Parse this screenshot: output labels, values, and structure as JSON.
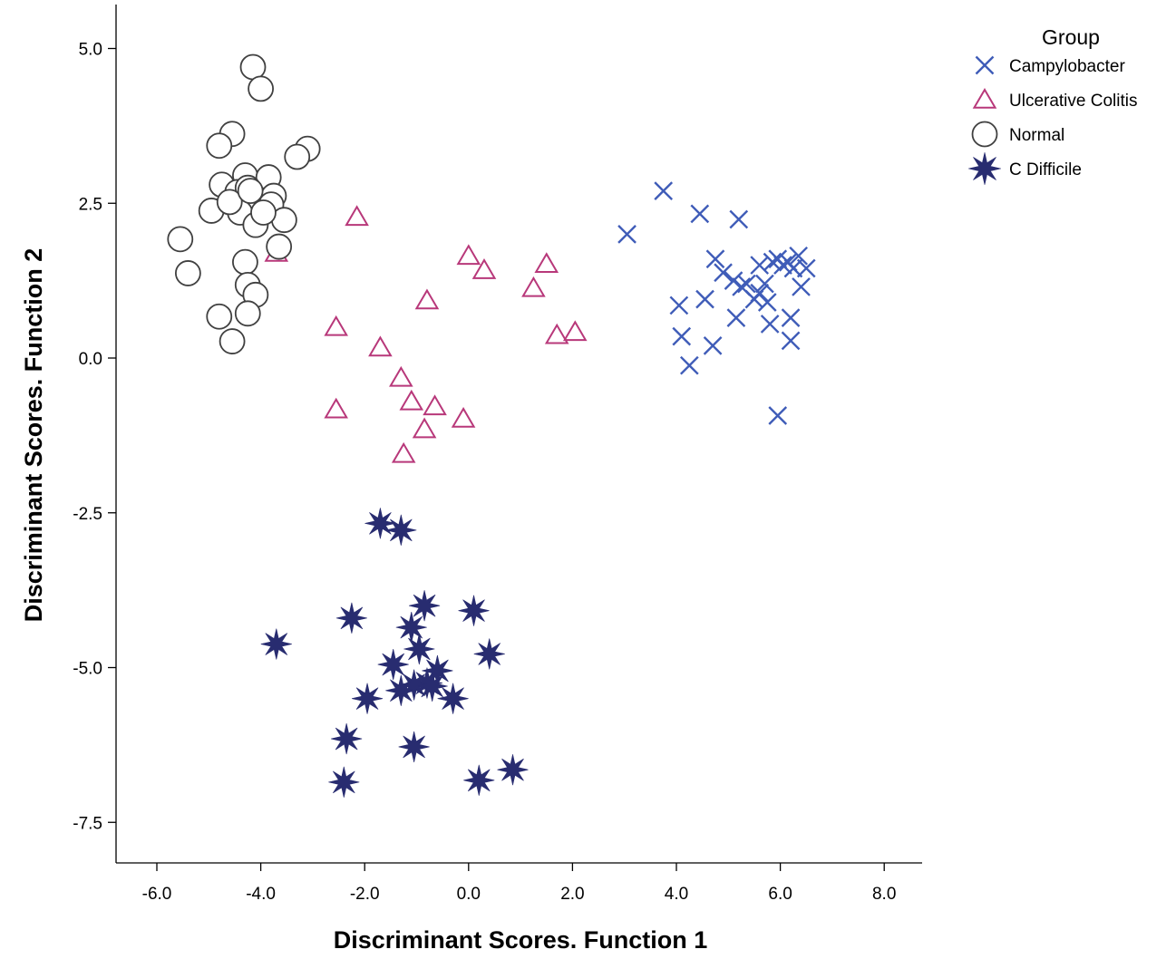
{
  "chart_data": {
    "type": "scatter",
    "xlabel": "Discriminant Scores.  Function 1",
    "ylabel": "Discriminant Scores.  Function 2",
    "xlim": [
      -6.8,
      8.8
    ],
    "ylim": [
      -8.2,
      5.7
    ],
    "xticks": [
      {
        "value": -6,
        "label": "-6.0"
      },
      {
        "value": -4,
        "label": "-4.0"
      },
      {
        "value": -2,
        "label": "-2.0"
      },
      {
        "value": 0,
        "label": "0.0"
      },
      {
        "value": 2,
        "label": "2.0"
      },
      {
        "value": 4,
        "label": "4.0"
      },
      {
        "value": 6,
        "label": "6.0"
      },
      {
        "value": 8,
        "label": "8.0"
      }
    ],
    "yticks": [
      {
        "value": 5,
        "label": "5.0"
      },
      {
        "value": 2.5,
        "label": "2.5"
      },
      {
        "value": 0,
        "label": "0.0"
      },
      {
        "value": -2.5,
        "label": "-2.5"
      },
      {
        "value": -5,
        "label": "-5.0"
      },
      {
        "value": -7.5,
        "label": "-7.5"
      }
    ],
    "legend": {
      "title": "Group",
      "position": "top-right",
      "entries": [
        "Campylobacter",
        "Ulcerative Colitis",
        "Normal",
        "C Difficile"
      ]
    },
    "grid": false,
    "series": [
      {
        "name": "Campylobacter",
        "marker": "x",
        "color": "#3f5cb8",
        "points": [
          [
            3.05,
            2.0
          ],
          [
            3.75,
            2.7
          ],
          [
            4.45,
            2.33
          ],
          [
            5.2,
            2.24
          ],
          [
            4.05,
            0.85
          ],
          [
            4.1,
            0.35
          ],
          [
            4.25,
            -0.12
          ],
          [
            4.55,
            0.95
          ],
          [
            4.7,
            0.2
          ],
          [
            4.75,
            1.6
          ],
          [
            4.9,
            1.38
          ],
          [
            5.1,
            1.25
          ],
          [
            5.15,
            0.65
          ],
          [
            5.25,
            1.15
          ],
          [
            5.35,
            1.2
          ],
          [
            5.5,
            0.95
          ],
          [
            5.6,
            1.5
          ],
          [
            5.7,
            1.2
          ],
          [
            5.75,
            0.9
          ],
          [
            5.8,
            0.55
          ],
          [
            5.85,
            1.55
          ],
          [
            5.95,
            1.6
          ],
          [
            6.05,
            1.5
          ],
          [
            6.15,
            1.55
          ],
          [
            6.25,
            1.45
          ],
          [
            6.35,
            1.65
          ],
          [
            6.4,
            1.15
          ],
          [
            6.5,
            1.45
          ],
          [
            6.2,
            0.65
          ],
          [
            6.2,
            0.28
          ],
          [
            5.95,
            -0.93
          ],
          [
            5.6,
            1.05
          ]
        ]
      },
      {
        "name": "Ulcerative Colitis",
        "marker": "triangle",
        "color": "#b8387a",
        "points": [
          [
            -2.15,
            2.28
          ],
          [
            -3.7,
            1.7
          ],
          [
            0.0,
            1.65
          ],
          [
            0.3,
            1.42
          ],
          [
            1.5,
            1.52
          ],
          [
            1.25,
            1.13
          ],
          [
            -0.8,
            0.93
          ],
          [
            -2.55,
            0.5
          ],
          [
            -1.7,
            0.17
          ],
          [
            1.7,
            0.37
          ],
          [
            2.05,
            0.42
          ],
          [
            -1.3,
            -0.32
          ],
          [
            -1.1,
            -0.7
          ],
          [
            -0.65,
            -0.78
          ],
          [
            -0.85,
            -1.15
          ],
          [
            -2.55,
            -0.83
          ],
          [
            -0.1,
            -0.98
          ],
          [
            -1.25,
            -1.55
          ]
        ]
      },
      {
        "name": "Normal",
        "marker": "circle",
        "color": "#404040",
        "points": [
          [
            -4.15,
            4.7
          ],
          [
            -4.0,
            4.35
          ],
          [
            -4.55,
            3.62
          ],
          [
            -4.8,
            3.43
          ],
          [
            -3.1,
            3.38
          ],
          [
            -3.3,
            3.25
          ],
          [
            -4.3,
            2.95
          ],
          [
            -3.85,
            2.92
          ],
          [
            -4.75,
            2.8
          ],
          [
            -4.45,
            2.68
          ],
          [
            -4.25,
            2.75
          ],
          [
            -3.75,
            2.62
          ],
          [
            -3.8,
            2.48
          ],
          [
            -4.35,
            2.45
          ],
          [
            -4.95,
            2.38
          ],
          [
            -4.4,
            2.35
          ],
          [
            -4.6,
            2.52
          ],
          [
            -3.55,
            2.23
          ],
          [
            -4.1,
            2.15
          ],
          [
            -3.95,
            2.35
          ],
          [
            -5.55,
            1.92
          ],
          [
            -3.65,
            1.8
          ],
          [
            -4.3,
            1.55
          ],
          [
            -5.4,
            1.37
          ],
          [
            -4.25,
            1.18
          ],
          [
            -4.1,
            1.02
          ],
          [
            -4.25,
            0.72
          ],
          [
            -4.8,
            0.67
          ],
          [
            -4.55,
            0.27
          ],
          [
            -4.2,
            2.7
          ]
        ]
      },
      {
        "name": "C Difficile",
        "marker": "star",
        "color": "#282c70",
        "points": [
          [
            -1.7,
            -2.67
          ],
          [
            -1.3,
            -2.78
          ],
          [
            -2.25,
            -4.2
          ],
          [
            -3.7,
            -4.62
          ],
          [
            -0.85,
            -4.0
          ],
          [
            0.1,
            -4.08
          ],
          [
            -1.1,
            -4.35
          ],
          [
            -0.95,
            -4.7
          ],
          [
            0.4,
            -4.78
          ],
          [
            -1.45,
            -4.95
          ],
          [
            -0.6,
            -5.05
          ],
          [
            -0.8,
            -5.25
          ],
          [
            -1.05,
            -5.28
          ],
          [
            -1.3,
            -5.37
          ],
          [
            -0.7,
            -5.3
          ],
          [
            -0.3,
            -5.5
          ],
          [
            -1.95,
            -5.5
          ],
          [
            -2.35,
            -6.15
          ],
          [
            -1.05,
            -6.28
          ],
          [
            -2.4,
            -6.85
          ],
          [
            0.2,
            -6.82
          ],
          [
            0.85,
            -6.65
          ]
        ]
      }
    ]
  }
}
